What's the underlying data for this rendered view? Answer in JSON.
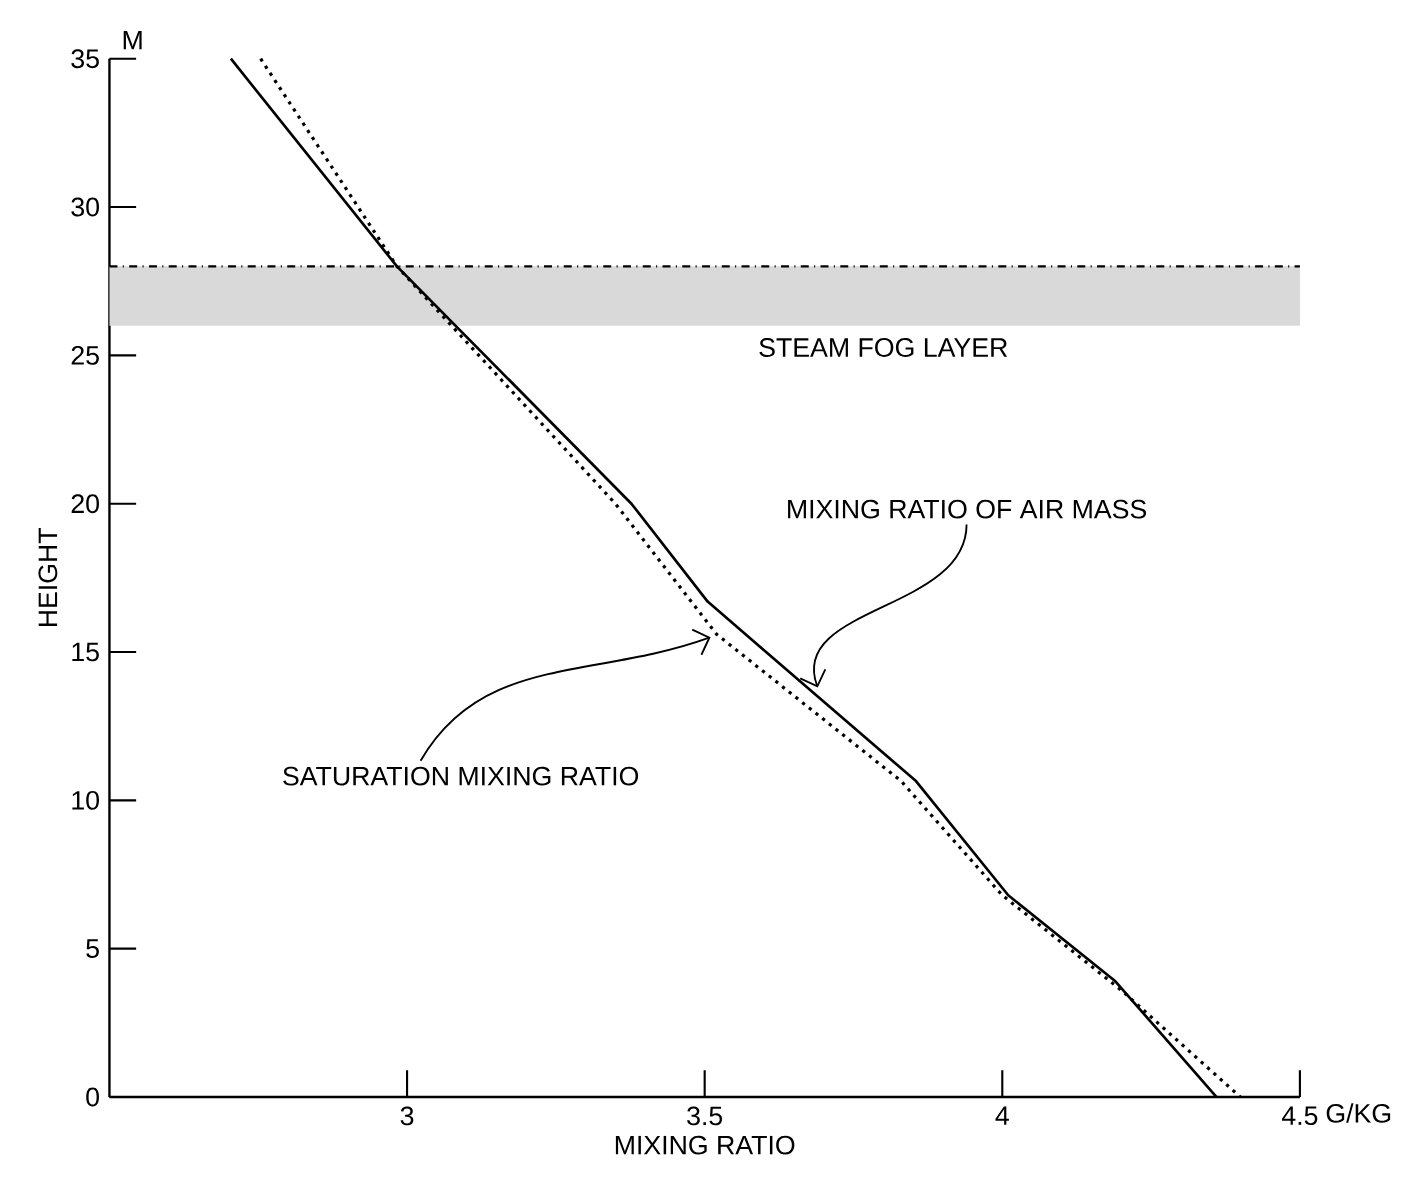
{
  "chart_data": {
    "type": "line",
    "xlabel": "MIXING RATIO",
    "ylabel": "HEIGHT",
    "xlim": [
      2.5,
      4.5
    ],
    "ylim": [
      0,
      35
    ],
    "xticks": [
      3,
      3.5,
      4,
      4.5
    ],
    "yticks": [
      0,
      5,
      10,
      15,
      20,
      25,
      30,
      35
    ],
    "series": [
      {
        "color": "#000000",
        "line_style": "solid",
        "x": [
          2.704,
          2.983,
          3.377,
          3.505,
          3.687,
          3.855,
          4.01,
          4.19,
          4.36
        ],
        "values": [
          35,
          28,
          20,
          16.7,
          13.55,
          10.65,
          6.8,
          3.9,
          0
        ]
      },
      {
        "color": "#000000",
        "line_style": "dotted",
        "x": [
          2.754,
          2.885,
          2.983,
          3.35,
          3.52,
          3.83,
          4.0,
          4.2,
          4.4
        ],
        "values": [
          35,
          31,
          28,
          20,
          15.6,
          10.65,
          6.8,
          3.6,
          0
        ]
      }
    ],
    "bands": [
      {
        "axis": "y",
        "from": 26,
        "to": 28,
        "label": "STEAM FOG LAYER",
        "color": "#d9d9d9"
      }
    ],
    "ref_lines": [
      {
        "axis": "y",
        "value": 28,
        "color": "#000000",
        "line_style": "dashdot"
      }
    ],
    "annotations": [
      "M",
      "G/KG",
      {
        "text": "MIXING RATIO OF AIR MASS",
        "x": 3.69,
        "y": 13.8
      },
      {
        "text": "SATURATION MIXING RATIO",
        "x": 3.51,
        "y": 15.5
      }
    ],
    "grid": false,
    "marker": "none"
  }
}
